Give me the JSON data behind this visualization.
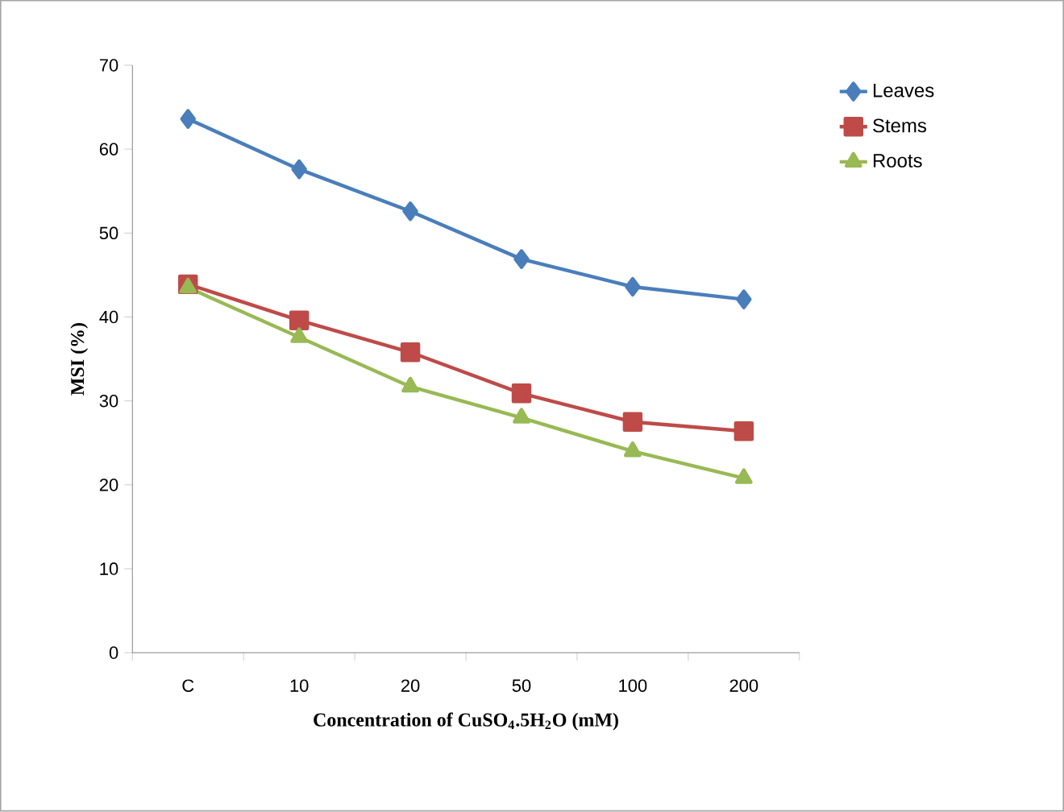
{
  "chart_data": {
    "type": "line",
    "xlabel": "Concentration of CuSO$_{4}$.5H$_{2}$O (mM)",
    "ylabel": "MSI (%)",
    "categories": [
      "C",
      "10",
      "20",
      "50",
      "100",
      "200"
    ],
    "series": [
      {
        "name": "Leaves",
        "color": "#4a7ebb",
        "marker": "diamond",
        "values": [
          63.6,
          57.6,
          52.6,
          46.9,
          43.6,
          42.1
        ]
      },
      {
        "name": "Stems",
        "color": "#be4b48",
        "marker": "square",
        "values": [
          43.9,
          39.6,
          35.8,
          30.9,
          27.5,
          26.4
        ]
      },
      {
        "name": "Roots",
        "color": "#98b954",
        "marker": "triangle",
        "values": [
          43.5,
          37.6,
          31.7,
          28.0,
          24.0,
          20.8
        ]
      }
    ],
    "ylim": [
      0,
      70
    ],
    "yticks": [
      0,
      10,
      20,
      30,
      40,
      50,
      60,
      70
    ],
    "grid": false,
    "legend": "top right",
    "line_style": "solid"
  }
}
